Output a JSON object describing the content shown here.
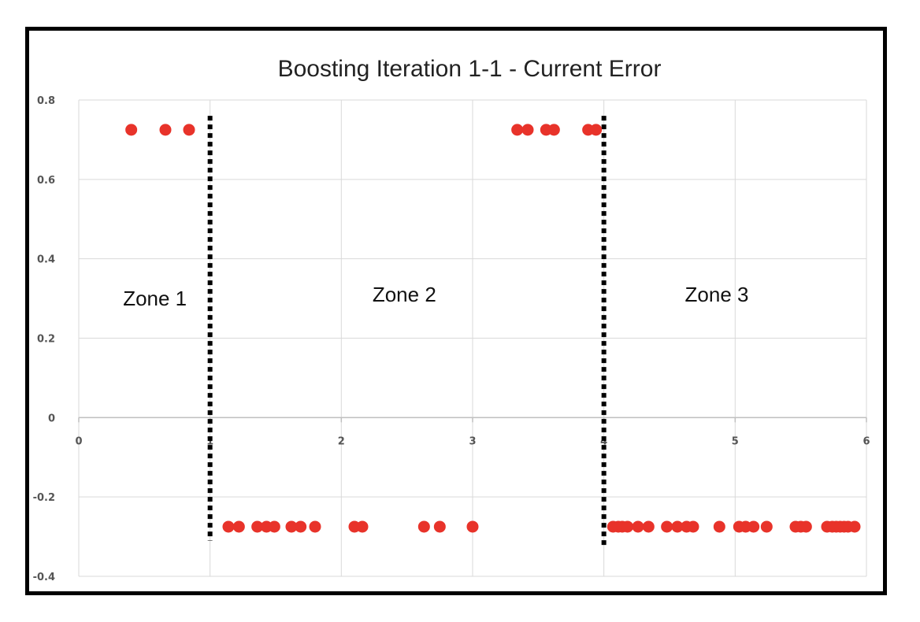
{
  "chart_data": {
    "type": "scatter",
    "title": "Boosting Iteration 1-1 - Current Error",
    "xlabel": "",
    "ylabel": "",
    "xlim": [
      0,
      6
    ],
    "ylim": [
      -0.4,
      0.8
    ],
    "x_ticks": [
      0,
      1,
      2,
      3,
      4,
      5,
      6
    ],
    "y_ticks": [
      -0.4,
      -0.2,
      0,
      0.2,
      0.4,
      0.6,
      0.8
    ],
    "y_tick_labels": [
      "-0.4",
      "-0.2",
      "0",
      "0.2",
      "0.4",
      "0.6",
      "0.8"
    ],
    "grid": true,
    "marker_color": "#e8332a",
    "series": [
      {
        "points": [
          {
            "x": 0.4,
            "y": 0.725
          },
          {
            "x": 0.66,
            "y": 0.725
          },
          {
            "x": 0.84,
            "y": 0.725
          },
          {
            "x": 3.34,
            "y": 0.725
          },
          {
            "x": 3.42,
            "y": 0.725
          },
          {
            "x": 3.56,
            "y": 0.725
          },
          {
            "x": 3.62,
            "y": 0.725
          },
          {
            "x": 3.88,
            "y": 0.725
          },
          {
            "x": 3.94,
            "y": 0.725
          },
          {
            "x": 1.14,
            "y": -0.275
          },
          {
            "x": 1.22,
            "y": -0.275
          },
          {
            "x": 1.36,
            "y": -0.275
          },
          {
            "x": 1.43,
            "y": -0.275
          },
          {
            "x": 1.49,
            "y": -0.275
          },
          {
            "x": 1.62,
            "y": -0.275
          },
          {
            "x": 1.69,
            "y": -0.275
          },
          {
            "x": 1.8,
            "y": -0.275
          },
          {
            "x": 2.1,
            "y": -0.275
          },
          {
            "x": 2.16,
            "y": -0.275
          },
          {
            "x": 2.63,
            "y": -0.275
          },
          {
            "x": 2.75,
            "y": -0.275
          },
          {
            "x": 3.0,
            "y": -0.275
          },
          {
            "x": 4.07,
            "y": -0.275
          },
          {
            "x": 4.11,
            "y": -0.275
          },
          {
            "x": 4.14,
            "y": -0.275
          },
          {
            "x": 4.18,
            "y": -0.275
          },
          {
            "x": 4.26,
            "y": -0.275
          },
          {
            "x": 4.34,
            "y": -0.275
          },
          {
            "x": 4.48,
            "y": -0.275
          },
          {
            "x": 4.56,
            "y": -0.275
          },
          {
            "x": 4.63,
            "y": -0.275
          },
          {
            "x": 4.68,
            "y": -0.275
          },
          {
            "x": 4.88,
            "y": -0.275
          },
          {
            "x": 5.03,
            "y": -0.275
          },
          {
            "x": 5.08,
            "y": -0.275
          },
          {
            "x": 5.14,
            "y": -0.275
          },
          {
            "x": 5.24,
            "y": -0.275
          },
          {
            "x": 5.46,
            "y": -0.275
          },
          {
            "x": 5.5,
            "y": -0.275
          },
          {
            "x": 5.54,
            "y": -0.275
          },
          {
            "x": 5.7,
            "y": -0.275
          },
          {
            "x": 5.74,
            "y": -0.275
          },
          {
            "x": 5.77,
            "y": -0.275
          },
          {
            "x": 5.8,
            "y": -0.275
          },
          {
            "x": 5.83,
            "y": -0.275
          },
          {
            "x": 5.86,
            "y": -0.275
          },
          {
            "x": 5.91,
            "y": -0.275
          }
        ]
      }
    ],
    "dividers": [
      {
        "x": 1,
        "y_top": 0.76,
        "y_bottom": -0.31
      },
      {
        "x": 4,
        "y_top": 0.76,
        "y_bottom": -0.33
      }
    ],
    "zones": [
      {
        "label": "Zone 1",
        "x": 0.58,
        "y": 0.3
      },
      {
        "label": "Zone 2",
        "x": 2.48,
        "y": 0.31
      },
      {
        "label": "Zone 3",
        "x": 4.86,
        "y": 0.31
      }
    ]
  }
}
